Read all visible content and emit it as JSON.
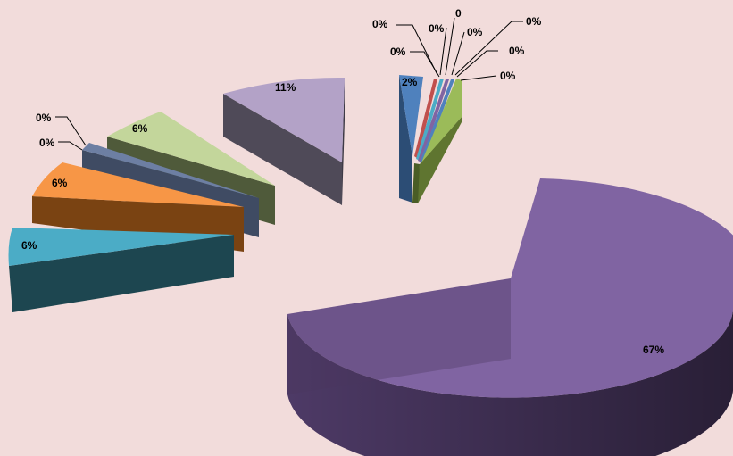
{
  "chart_data": {
    "type": "pie",
    "style": "3d-exploded",
    "title": "",
    "legend": "none",
    "slices": [
      {
        "label": "2%",
        "value": 2,
        "color": "#4f81bd"
      },
      {
        "label": "0%",
        "value": 0,
        "color": "#c0504d"
      },
      {
        "label": "0%",
        "value": 0,
        "color": "#9bbb59"
      },
      {
        "label": "0",
        "value": 0,
        "color": "#8064a2"
      },
      {
        "label": "0%",
        "value": 0,
        "color": "#4bacc6"
      },
      {
        "label": "0%",
        "value": 0,
        "color": "#f79646"
      },
      {
        "label": "0%",
        "value": 0,
        "color": "#2c4d75"
      },
      {
        "label": "0%",
        "value": 0,
        "color": "#772c2a"
      },
      {
        "label": "0%",
        "value": 0,
        "color": "#5f7530"
      },
      {
        "label": "67%",
        "value": 67,
        "color": "#8064a2"
      },
      {
        "label": "6%",
        "value": 6,
        "color": "#4bacc6"
      },
      {
        "label": "6%",
        "value": 6,
        "color": "#f79646"
      },
      {
        "label": "0%",
        "value": 0,
        "color": "#4f81bd"
      },
      {
        "label": "0%",
        "value": 0,
        "color": "#c0504d"
      },
      {
        "label": "6%",
        "value": 6,
        "color": "#9bbb59"
      },
      {
        "label": "11%",
        "value": 11,
        "color": "#b3a2c7"
      }
    ]
  }
}
